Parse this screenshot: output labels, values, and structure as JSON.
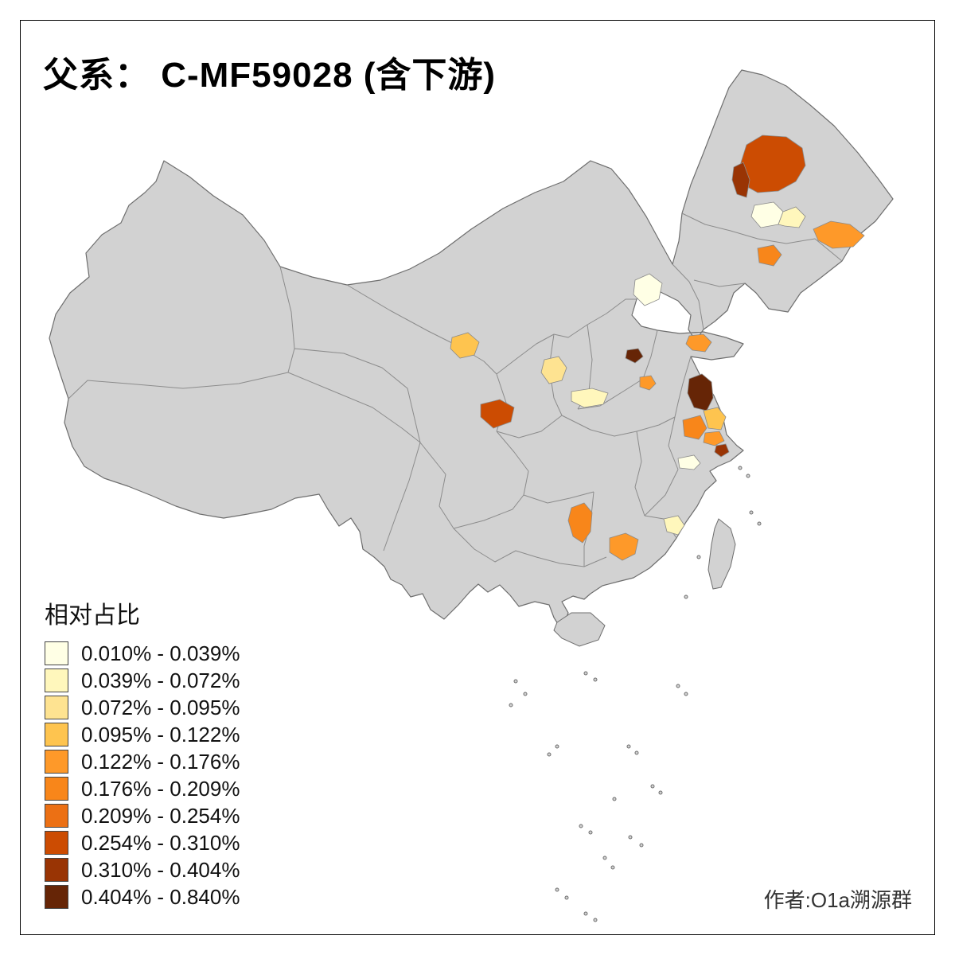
{
  "title": "父系： C-MF59028 (含下游)",
  "attribution": "作者:O1a溯源群",
  "legend": {
    "title": "相对占比",
    "classes": [
      {
        "label": "0.010% - 0.039%",
        "color": "#FFFFE5"
      },
      {
        "label": "0.039% - 0.072%",
        "color": "#FFF7BC"
      },
      {
        "label": "0.072% - 0.095%",
        "color": "#FEE391"
      },
      {
        "label": "0.095% - 0.122%",
        "color": "#FEC44F"
      },
      {
        "label": "0.122% - 0.176%",
        "color": "#FE9929"
      },
      {
        "label": "0.176% - 0.209%",
        "color": "#F8861A"
      },
      {
        "label": "0.209% - 0.254%",
        "color": "#EC7014"
      },
      {
        "label": "0.254% - 0.310%",
        "color": "#CC4C02"
      },
      {
        "label": "0.310% - 0.404%",
        "color": "#993404"
      },
      {
        "label": "0.404% - 0.840%",
        "color": "#662506"
      }
    ]
  },
  "map": {
    "land_color": "#D2D2D2",
    "province_border_color": "#8C8C8C",
    "outline_color": "#6E6E6E",
    "background": "#FFFFFF",
    "regions": [
      {
        "id": "patch-01",
        "class_index": 7
      },
      {
        "id": "patch-02",
        "class_index": 8
      },
      {
        "id": "patch-03",
        "class_index": 0
      },
      {
        "id": "patch-04",
        "class_index": 1
      },
      {
        "id": "patch-05",
        "class_index": 4
      },
      {
        "id": "patch-06",
        "class_index": 5
      },
      {
        "id": "patch-07",
        "class_index": 0
      },
      {
        "id": "patch-08",
        "class_index": 9
      },
      {
        "id": "patch-09",
        "class_index": 4
      },
      {
        "id": "patch-10",
        "class_index": 4
      },
      {
        "id": "patch-11",
        "class_index": 3
      },
      {
        "id": "patch-12",
        "class_index": 7
      },
      {
        "id": "patch-13",
        "class_index": 2
      },
      {
        "id": "patch-14",
        "class_index": 1
      },
      {
        "id": "patch-15",
        "class_index": 9
      },
      {
        "id": "patch-16",
        "class_index": 3
      },
      {
        "id": "patch-17",
        "class_index": 5
      },
      {
        "id": "patch-18",
        "class_index": 4
      },
      {
        "id": "patch-19",
        "class_index": 8
      },
      {
        "id": "patch-20",
        "class_index": 0
      },
      {
        "id": "patch-21",
        "class_index": 5
      },
      {
        "id": "patch-22",
        "class_index": 4
      },
      {
        "id": "patch-23",
        "class_index": 1
      }
    ]
  }
}
